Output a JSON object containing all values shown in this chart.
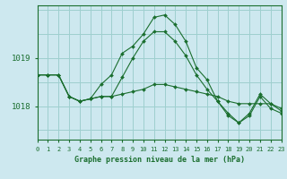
{
  "title": "Graphe pression niveau de la mer (hPa)",
  "background_color": "#cde8ef",
  "plot_background": "#cde8ef",
  "grid_color": "#9ecfcf",
  "line_color": "#1a6e2e",
  "x_labels": [
    "0",
    "1",
    "2",
    "3",
    "4",
    "5",
    "6",
    "7",
    "8",
    "9",
    "10",
    "11",
    "12",
    "13",
    "14",
    "15",
    "16",
    "17",
    "18",
    "19",
    "20",
    "21",
    "22",
    "23"
  ],
  "xlim": [
    0,
    23
  ],
  "ylim": [
    1017.3,
    1020.1
  ],
  "yticks": [
    1018,
    1019
  ],
  "series": [
    [
      1018.65,
      1018.65,
      1018.65,
      1018.2,
      1018.1,
      1018.15,
      1018.2,
      1018.2,
      1018.25,
      1018.3,
      1018.35,
      1018.45,
      1018.45,
      1018.4,
      1018.35,
      1018.3,
      1018.25,
      1018.2,
      1018.1,
      1018.05,
      1018.05,
      1018.05,
      1018.05,
      1017.95
    ],
    [
      1018.65,
      1018.65,
      1018.65,
      1018.2,
      1018.1,
      1018.15,
      1018.2,
      1018.2,
      1018.6,
      1019.0,
      1019.35,
      1019.55,
      1019.55,
      1019.35,
      1019.05,
      1018.65,
      1018.35,
      1018.1,
      1017.8,
      1017.65,
      1017.8,
      1018.2,
      1017.95,
      1017.85
    ],
    [
      1018.65,
      1018.65,
      1018.65,
      1018.2,
      1018.1,
      1018.15,
      1018.45,
      1018.65,
      1019.1,
      1019.25,
      1019.5,
      1019.85,
      1019.9,
      1019.7,
      1019.35,
      1018.8,
      1018.55,
      1018.1,
      1017.85,
      1017.65,
      1017.85,
      1018.25,
      1018.05,
      1017.9
    ]
  ]
}
